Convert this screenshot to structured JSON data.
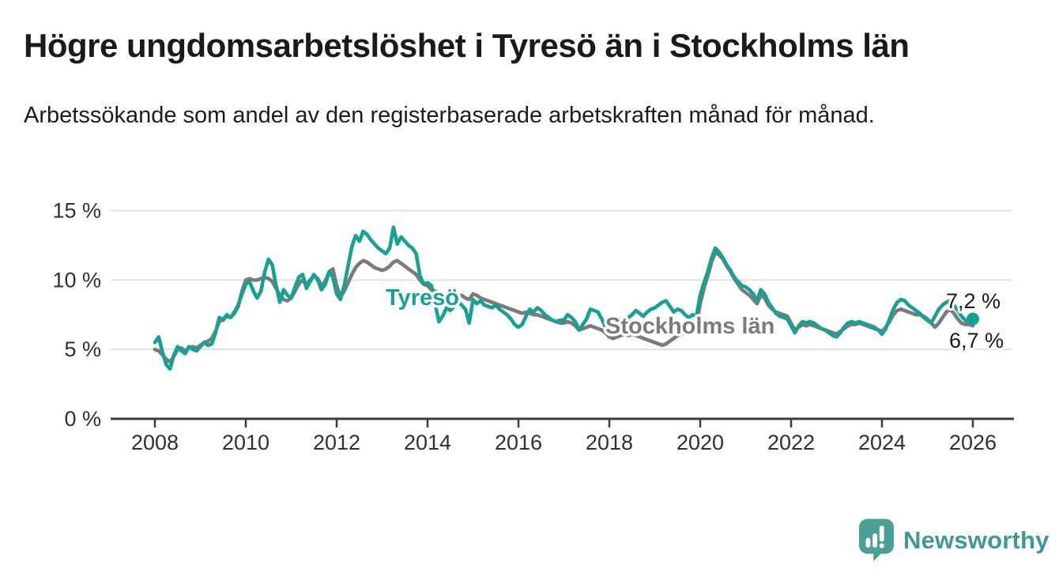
{
  "header": {
    "title": "Högre ungdomsarbetslöshet i Tyresö än i Stockholms län",
    "subtitle": "Arbetssökande som andel av den registerbaserade arbetskraften månad för månad."
  },
  "chart_data": {
    "type": "line",
    "title": "Högre ungdomsarbetslöshet i Tyresö än i Stockholms län",
    "subtitle": "Arbetssökande som andel av den registerbaserade arbetskraften månad för månad.",
    "unit": "%",
    "frequency": "monthly",
    "start": "2008-01",
    "end": "2026-01",
    "grid": "horizontal",
    "legend": "inline-labels",
    "ylim": [
      0,
      16.5
    ],
    "y_ticks": [
      0,
      5,
      10,
      15
    ],
    "y_tick_labels": [
      "0 %",
      "5 %",
      "10 %",
      "15 %"
    ],
    "x_tick_years": [
      2008,
      2010,
      2012,
      2014,
      2016,
      2018,
      2020,
      2022,
      2024,
      2026
    ],
    "x_tick_labels": [
      "2008",
      "2010",
      "2012",
      "2014",
      "2016",
      "2018",
      "2020",
      "2022",
      "2024",
      "2026"
    ],
    "latest_labels": [
      "7,2 %",
      "6,7 %"
    ],
    "latest_values": [
      7.2,
      6.7
    ],
    "series": [
      {
        "name": "Tyresö",
        "color": "#17a192",
        "values": [
          5.5,
          5.9,
          4.8,
          3.9,
          3.6,
          4.6,
          5.2,
          4.9,
          4.7,
          5.2,
          5.0,
          4.9,
          5.2,
          5.5,
          5.3,
          5.4,
          6.2,
          7.3,
          7.1,
          7.5,
          7.3,
          7.7,
          8.2,
          9.0,
          9.7,
          9.9,
          9.2,
          8.7,
          9.2,
          10.6,
          11.5,
          11.1,
          9.6,
          8.4,
          9.3,
          8.9,
          8.7,
          9.5,
          10.2,
          10.4,
          9.4,
          9.9,
          10.4,
          10.0,
          9.3,
          9.7,
          10.6,
          10.2,
          9.0,
          8.6,
          9.6,
          11.0,
          12.4,
          13.2,
          12.8,
          13.5,
          13.3,
          12.9,
          12.6,
          12.3,
          12.1,
          11.9,
          12.3,
          13.8,
          12.6,
          13.1,
          12.8,
          12.5,
          12.3,
          11.9,
          10.3,
          9.7,
          9.8,
          9.6,
          8.3,
          7.0,
          7.4,
          8.0,
          7.8,
          8.1,
          8.5,
          8.2,
          7.9,
          6.9,
          8.6,
          8.3,
          8.5,
          8.2,
          8.1,
          8.0,
          8.2,
          7.9,
          7.7,
          7.5,
          7.2,
          6.8,
          6.6,
          6.8,
          7.4,
          7.9,
          7.7,
          8.0,
          7.8,
          7.5,
          7.3,
          7.1,
          7.0,
          7.1,
          7.1,
          7.5,
          7.3,
          7.0,
          6.4,
          6.8,
          7.2,
          7.9,
          7.8,
          7.7,
          7.2,
          6.6,
          6.3,
          6.5,
          6.9,
          7.2,
          7.0,
          7.3,
          7.5,
          7.8,
          7.6,
          7.4,
          7.7,
          7.9,
          8.0,
          8.2,
          8.4,
          8.5,
          8.1,
          7.7,
          7.9,
          7.8,
          7.5,
          7.3,
          7.5,
          7.4,
          8.9,
          9.8,
          10.6,
          11.6,
          12.3,
          12.0,
          11.6,
          11.1,
          10.7,
          10.2,
          9.9,
          9.6,
          9.5,
          9.3,
          9.0,
          8.5,
          9.3,
          9.0,
          8.4,
          8.0,
          7.6,
          7.4,
          7.3,
          7.2,
          6.7,
          6.2,
          6.7,
          7.0,
          6.9,
          7.0,
          6.9,
          6.7,
          6.5,
          6.4,
          6.2,
          6.0,
          5.9,
          6.2,
          6.6,
          6.9,
          7.0,
          6.9,
          7.0,
          6.9,
          6.8,
          6.7,
          6.6,
          6.4,
          6.1,
          6.5,
          7.2,
          7.9,
          8.4,
          8.6,
          8.5,
          8.2,
          8.0,
          7.8,
          7.6,
          7.3,
          7.1,
          6.9,
          7.4,
          7.9,
          8.2,
          8.4,
          8.5,
          8.2,
          7.8,
          7.4,
          7.1,
          7.0,
          7.2
        ]
      },
      {
        "name": "Stockholms län",
        "color": "#7b7b7b",
        "values": [
          5.0,
          4.9,
          4.6,
          4.3,
          4.1,
          4.5,
          5.0,
          5.1,
          4.9,
          5.1,
          5.2,
          5.1,
          5.3,
          5.5,
          5.6,
          5.8,
          6.3,
          7.0,
          7.2,
          7.4,
          7.3,
          7.6,
          8.1,
          9.2,
          10.0,
          10.1,
          10.0,
          10.0,
          10.1,
          10.2,
          10.1,
          9.9,
          9.4,
          8.9,
          8.6,
          8.5,
          8.7,
          9.2,
          9.7,
          10.0,
          9.7,
          10.0,
          10.3,
          10.1,
          9.6,
          9.9,
          10.6,
          10.8,
          9.6,
          8.8,
          9.2,
          9.8,
          10.4,
          10.9,
          11.2,
          11.4,
          11.3,
          11.1,
          10.9,
          10.8,
          10.7,
          10.8,
          11.0,
          11.3,
          11.4,
          11.2,
          11.0,
          10.8,
          10.6,
          10.4,
          10.0,
          9.7,
          9.6,
          9.3,
          9.2,
          9.1,
          9.0,
          8.9,
          8.8,
          8.7,
          8.8,
          8.9,
          8.7,
          8.6,
          9.0,
          8.9,
          8.7,
          8.6,
          8.5,
          8.4,
          8.3,
          8.2,
          8.1,
          8.0,
          7.9,
          7.8,
          7.7,
          7.6,
          7.7,
          7.6,
          7.5,
          7.5,
          7.4,
          7.3,
          7.2,
          7.1,
          7.0,
          6.9,
          6.9,
          7.0,
          6.9,
          6.7,
          6.4,
          6.5,
          6.6,
          6.7,
          6.6,
          6.5,
          6.4,
          6.2,
          5.9,
          5.8,
          5.9,
          6.0,
          6.1,
          6.0,
          6.1,
          6.0,
          5.9,
          5.8,
          5.7,
          5.6,
          5.5,
          5.4,
          5.3,
          5.4,
          5.6,
          5.8,
          6.0,
          6.1,
          6.2,
          6.3,
          6.5,
          6.8,
          8.3,
          9.4,
          10.3,
          11.3,
          12.0,
          11.8,
          11.5,
          11.0,
          10.6,
          10.1,
          9.7,
          9.3,
          9.1,
          8.9,
          8.6,
          8.3,
          8.9,
          8.7,
          8.2,
          7.9,
          7.7,
          7.6,
          7.5,
          7.4,
          6.9,
          6.4,
          6.6,
          6.8,
          6.7,
          6.8,
          6.7,
          6.6,
          6.5,
          6.4,
          6.3,
          6.2,
          6.1,
          6.3,
          6.5,
          6.7,
          6.8,
          6.8,
          6.9,
          6.8,
          6.7,
          6.6,
          6.5,
          6.4,
          6.3,
          6.6,
          7.0,
          7.5,
          7.8,
          7.9,
          7.8,
          7.7,
          7.6,
          7.5,
          7.5,
          7.4,
          7.2,
          6.9,
          6.6,
          6.9,
          7.3,
          7.7,
          7.9,
          7.6,
          7.2,
          6.9,
          6.8,
          6.8,
          6.7
        ]
      }
    ],
    "colors": {
      "tyreso": "#17a192",
      "stockholm": "#7b7b7b",
      "gridline": "#dedede",
      "axis": "#3d3d3d"
    }
  },
  "footer": {
    "brand": "Newsworthy",
    "logo_icon": "bar-chart-speech-bubble",
    "logo_color": "#4aa096",
    "text_color": "#3e9a91"
  }
}
